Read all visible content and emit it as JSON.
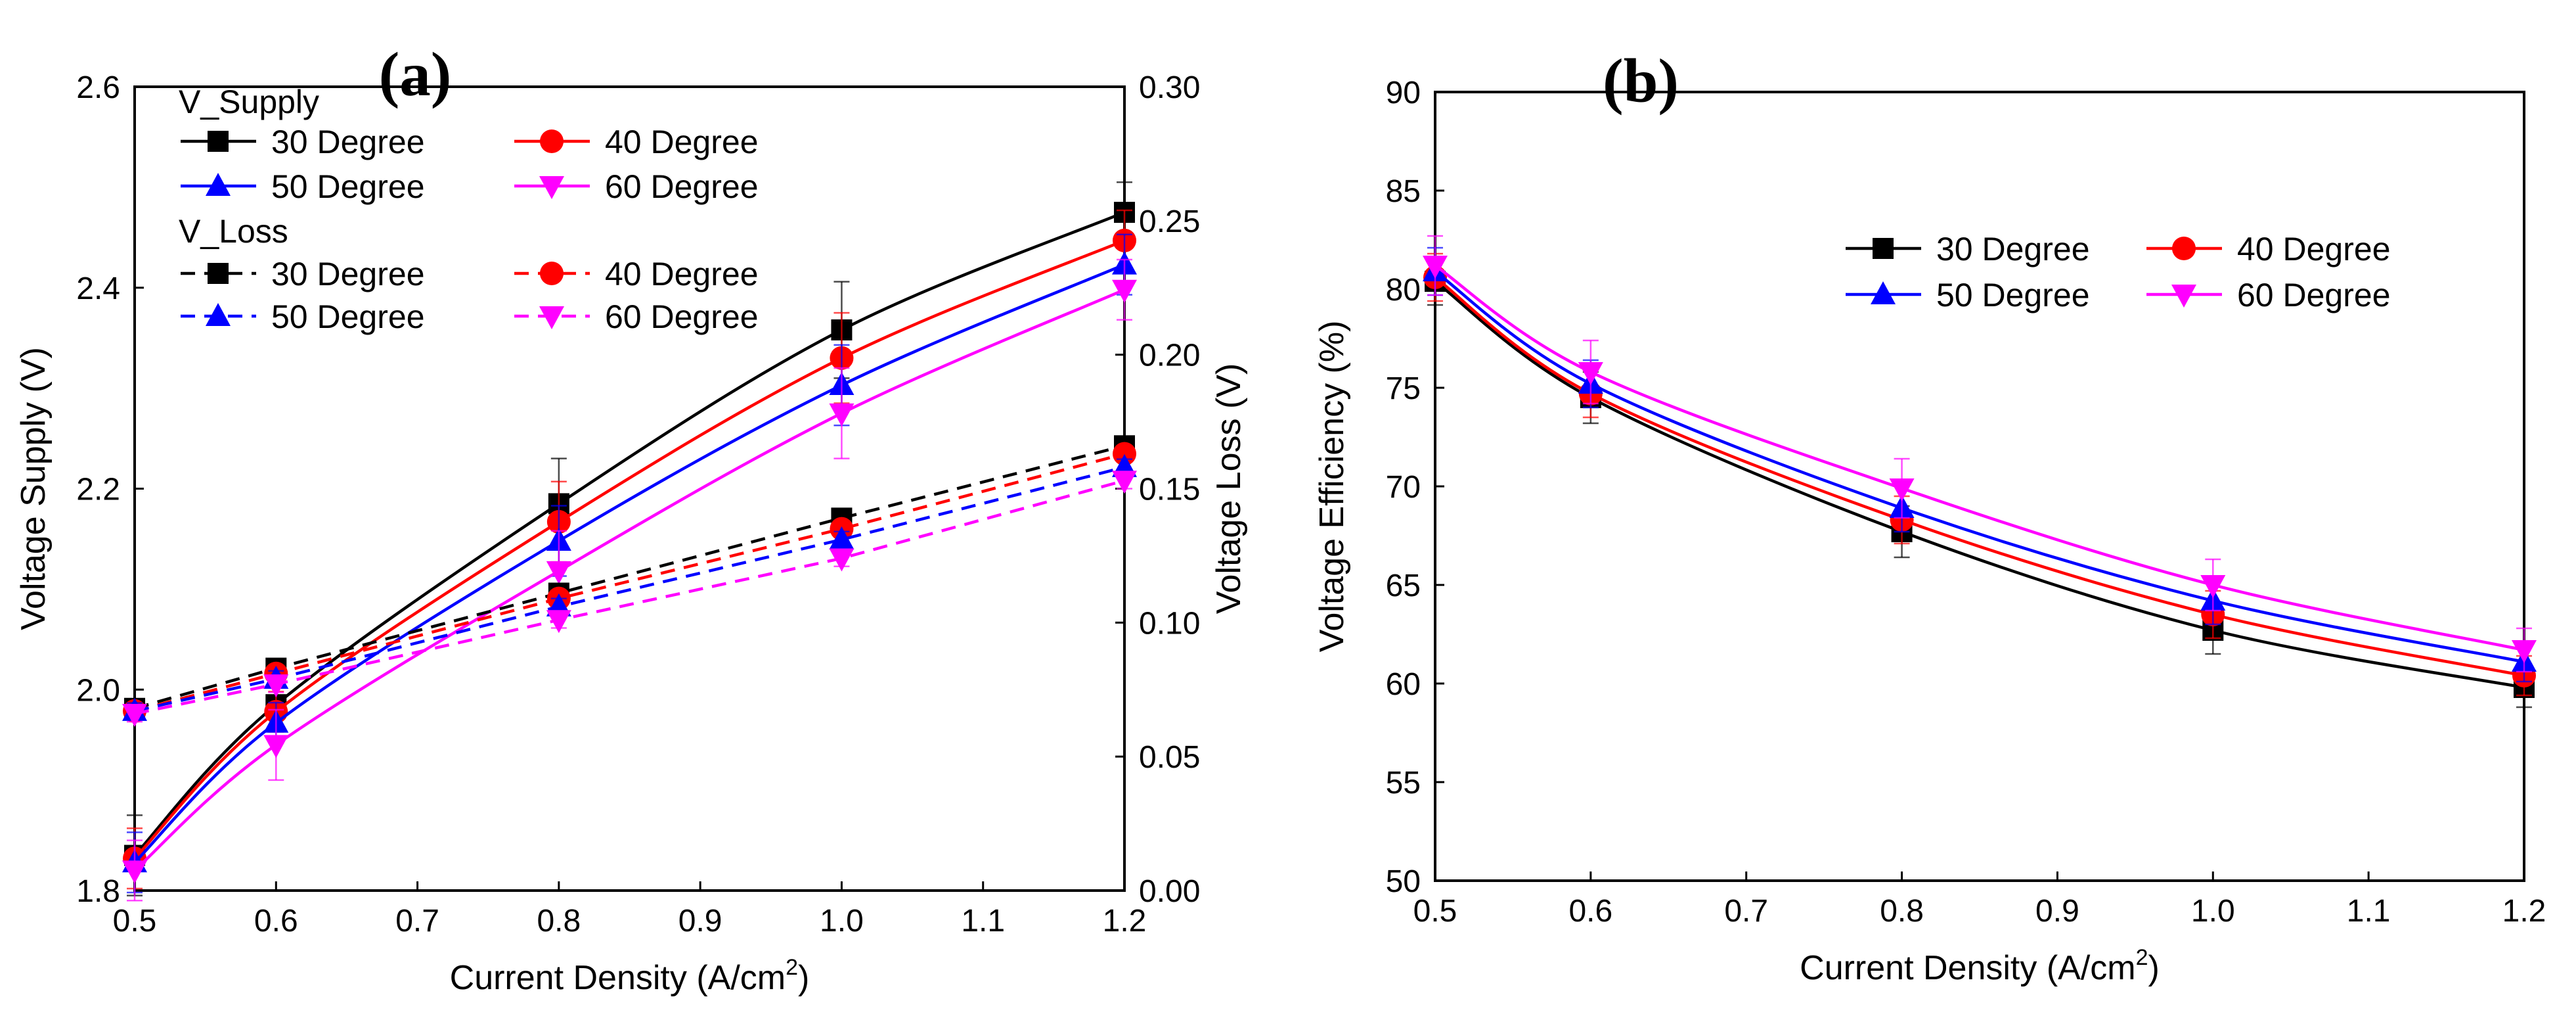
{
  "chart_data": [
    {
      "panel_label": "(a)",
      "type": "line",
      "xlabel": "Current Density (A/cm²)",
      "xlabel_text": "Current Density (A/cm",
      "xlabel_sup": "2",
      "xlabel_close": ")",
      "ylabel": "Voltage Supply (V)",
      "y2label": "Voltage Loss (V)",
      "xlim": [
        0.5,
        1.2
      ],
      "ylim": [
        1.8,
        2.6
      ],
      "y2lim": [
        0.0,
        0.3
      ],
      "grid": false,
      "x": [
        0.5,
        0.6,
        0.8,
        1.0,
        1.2
      ],
      "xticks": [
        "0.5",
        "0.6",
        "0.7",
        "0.8",
        "0.9",
        "1.0",
        "1.1",
        "1.2"
      ],
      "yticks": [
        "1.8",
        "2.0",
        "2.2",
        "2.4",
        "2.6"
      ],
      "y2ticks": [
        "0.00",
        "0.05",
        "0.10",
        "0.15",
        "0.20",
        "0.25",
        "0.30"
      ],
      "legend_position": "top-left",
      "legend_groups": [
        "V_Supply",
        "V_Loss"
      ],
      "series": [
        {
          "name": "30 Degree",
          "group": "V_Supply",
          "axis": "left",
          "color": "#000000",
          "marker": "square",
          "dash": false,
          "values": [
            1.835,
            1.985,
            2.185,
            2.358,
            2.475
          ],
          "errors": [
            0.04,
            0.025,
            0.045,
            0.048,
            0.03
          ]
        },
        {
          "name": "40 Degree",
          "group": "V_Supply",
          "axis": "left",
          "color": "#ff0000",
          "marker": "circle",
          "dash": false,
          "values": [
            1.832,
            1.978,
            2.167,
            2.33,
            2.447
          ],
          "errors": [
            0.03,
            0.02,
            0.04,
            0.045,
            0.03
          ]
        },
        {
          "name": "50 Degree",
          "group": "V_Supply",
          "axis": "left",
          "color": "#0000ff",
          "marker": "triangle-up",
          "dash": false,
          "values": [
            1.828,
            1.967,
            2.148,
            2.303,
            2.423
          ],
          "errors": [
            0.03,
            0.02,
            0.035,
            0.04,
            0.03
          ]
        },
        {
          "name": "60 Degree",
          "group": "V_Supply",
          "axis": "left",
          "color": "#ff00ff",
          "marker": "triangle-down",
          "dash": false,
          "values": [
            1.82,
            1.945,
            2.118,
            2.275,
            2.398
          ],
          "errors": [
            0.03,
            0.035,
            0.04,
            0.045,
            0.03
          ]
        },
        {
          "name": "30 Degree",
          "group": "V_Loss",
          "axis": "right",
          "color": "#000000",
          "marker": "square",
          "dash": true,
          "values": [
            0.068,
            0.083,
            0.111,
            0.139,
            0.166
          ],
          "errors": [
            0.003,
            0.003,
            0.003,
            0.003,
            0.003
          ]
        },
        {
          "name": "40 Degree",
          "group": "V_Loss",
          "axis": "right",
          "color": "#ff0000",
          "marker": "circle",
          "dash": true,
          "values": [
            0.067,
            0.081,
            0.109,
            0.135,
            0.163
          ],
          "errors": [
            0.003,
            0.003,
            0.003,
            0.003,
            0.003
          ]
        },
        {
          "name": "50 Degree",
          "group": "V_Loss",
          "axis": "right",
          "color": "#0000ff",
          "marker": "triangle-up",
          "dash": true,
          "values": [
            0.067,
            0.079,
            0.106,
            0.131,
            0.158
          ],
          "errors": [
            0.003,
            0.003,
            0.003,
            0.003,
            0.003
          ]
        },
        {
          "name": "60 Degree",
          "group": "V_Loss",
          "axis": "right",
          "color": "#ff00ff",
          "marker": "triangle-down",
          "dash": true,
          "values": [
            0.066,
            0.077,
            0.101,
            0.124,
            0.153
          ],
          "errors": [
            0.003,
            0.003,
            0.003,
            0.003,
            0.003
          ]
        }
      ]
    },
    {
      "panel_label": "(b)",
      "type": "line",
      "xlabel": "Current Density (A/cm²)",
      "xlabel_text": "Current Density (A/cm",
      "xlabel_sup": "2",
      "xlabel_close": ")",
      "ylabel": "Voltage Efficiency (%)",
      "xlim": [
        0.5,
        1.2
      ],
      "ylim": [
        50,
        90
      ],
      "grid": false,
      "x": [
        0.5,
        0.6,
        0.8,
        1.0,
        1.2
      ],
      "xticks": [
        "0.5",
        "0.6",
        "0.7",
        "0.8",
        "0.9",
        "1.0",
        "1.1",
        "1.2"
      ],
      "yticks": [
        "50",
        "55",
        "60",
        "65",
        "70",
        "75",
        "80",
        "85",
        "90"
      ],
      "legend_position": "top-right",
      "series": [
        {
          "name": "30 Degree",
          "axis": "left",
          "color": "#000000",
          "marker": "square",
          "dash": false,
          "values": [
            80.4,
            74.5,
            67.7,
            62.7,
            59.8
          ],
          "errors": [
            1.2,
            1.3,
            1.3,
            1.2,
            1.0
          ]
        },
        {
          "name": "40 Degree",
          "axis": "left",
          "color": "#ff0000",
          "marker": "circle",
          "dash": false,
          "values": [
            80.6,
            74.7,
            68.3,
            63.5,
            60.4
          ],
          "errors": [
            1.2,
            1.2,
            1.2,
            1.2,
            1.0
          ]
        },
        {
          "name": "50 Degree",
          "axis": "left",
          "color": "#0000ff",
          "marker": "triangle-up",
          "dash": false,
          "values": [
            80.9,
            75.2,
            68.9,
            64.2,
            61.1
          ],
          "errors": [
            1.2,
            1.2,
            1.2,
            1.2,
            1.0
          ]
        },
        {
          "name": "60 Degree",
          "axis": "left",
          "color": "#ff00ff",
          "marker": "triangle-down",
          "dash": false,
          "values": [
            81.2,
            75.8,
            69.9,
            65.0,
            61.7
          ],
          "errors": [
            1.5,
            1.6,
            1.5,
            1.3,
            1.1
          ]
        }
      ]
    }
  ]
}
